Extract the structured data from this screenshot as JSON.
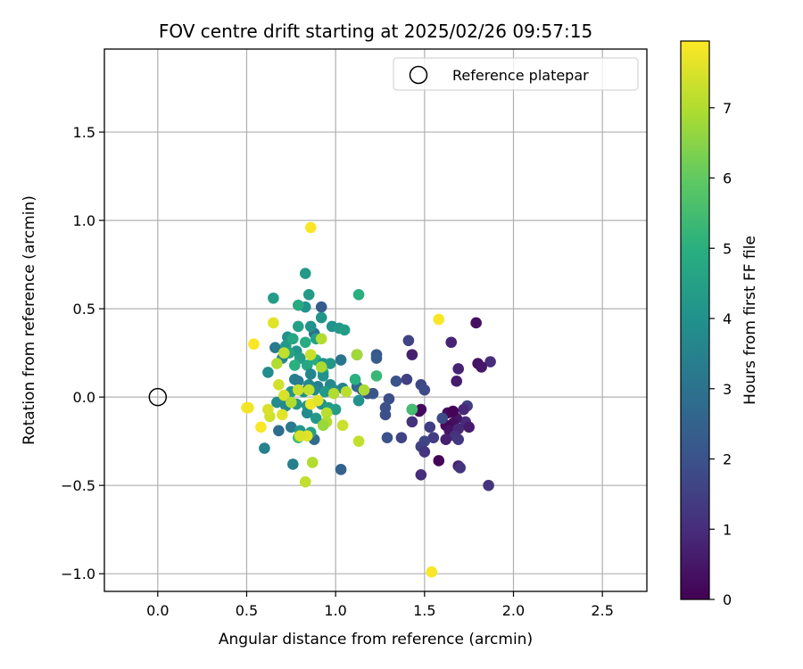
{
  "chart_data": {
    "type": "scatter",
    "title": "FOV centre drift starting at 2025/02/26 09:57:15",
    "xlabel": "Angular distance from reference (arcmin)",
    "ylabel": "Rotation from reference (arcmin)",
    "xlim": [
      -0.3,
      2.75
    ],
    "ylim": [
      -1.1,
      1.97
    ],
    "xticks": [
      0.0,
      0.5,
      1.0,
      1.5,
      2.0,
      2.5
    ],
    "xtick_labels": [
      "0.0",
      "0.5",
      "1.0",
      "1.5",
      "2.0",
      "2.5"
    ],
    "yticks": [
      -1.0,
      -0.5,
      0.0,
      0.5,
      1.0,
      1.5
    ],
    "ytick_labels": [
      "−1.0",
      "−0.5",
      "0.0",
      "0.5",
      "1.0",
      "1.5"
    ],
    "grid": true,
    "legend": {
      "placement": "top-right",
      "label": "Reference platepar"
    },
    "reference_point": {
      "x": 0.0,
      "y": 0.0
    },
    "colorbar": {
      "label": "Hours from first FF file",
      "colormap": "viridis",
      "range": [
        0,
        7.95
      ],
      "ticks": [
        0,
        1,
        2,
        3,
        4,
        5,
        6,
        7
      ],
      "tick_labels": [
        "0",
        "1",
        "2",
        "3",
        "4",
        "5",
        "6",
        "7"
      ]
    },
    "points": [
      {
        "x": 1.79,
        "y": 0.42,
        "c": 0.3
      },
      {
        "x": 1.87,
        "y": 0.2,
        "c": 1.0
      },
      {
        "x": 1.8,
        "y": 0.19,
        "c": 0.4
      },
      {
        "x": 1.82,
        "y": 0.17,
        "c": 0.5
      },
      {
        "x": 1.69,
        "y": 0.16,
        "c": 0.8
      },
      {
        "x": 1.65,
        "y": 0.31,
        "c": 0.8
      },
      {
        "x": 1.68,
        "y": 0.09,
        "c": 0.6
      },
      {
        "x": 1.86,
        "y": -0.5,
        "c": 1.2
      },
      {
        "x": 1.74,
        "y": -0.05,
        "c": 1.4
      },
      {
        "x": 1.72,
        "y": -0.07,
        "c": 0.9
      },
      {
        "x": 1.73,
        "y": -0.14,
        "c": 1.0
      },
      {
        "x": 1.75,
        "y": -0.17,
        "c": 0.6
      },
      {
        "x": 1.68,
        "y": -0.12,
        "c": 0.5
      },
      {
        "x": 1.66,
        "y": -0.15,
        "c": 0.3
      },
      {
        "x": 1.63,
        "y": -0.09,
        "c": 0.2
      },
      {
        "x": 1.66,
        "y": -0.08,
        "c": 0.1
      },
      {
        "x": 1.62,
        "y": -0.16,
        "c": 0.2
      },
      {
        "x": 1.6,
        "y": -0.12,
        "c": 1.8
      },
      {
        "x": 1.64,
        "y": -0.19,
        "c": 0.4
      },
      {
        "x": 1.69,
        "y": -0.18,
        "c": 0.9
      },
      {
        "x": 1.67,
        "y": -0.22,
        "c": 1.1
      },
      {
        "x": 1.69,
        "y": -0.24,
        "c": 1.3
      },
      {
        "x": 1.62,
        "y": -0.24,
        "c": 0.7
      },
      {
        "x": 1.55,
        "y": -0.23,
        "c": 1.4
      },
      {
        "x": 1.69,
        "y": -0.39,
        "c": 0.7
      },
      {
        "x": 1.7,
        "y": -0.4,
        "c": 1.2
      },
      {
        "x": 1.58,
        "y": -0.36,
        "c": 0.1
      },
      {
        "x": 1.53,
        "y": -0.17,
        "c": 1.4
      },
      {
        "x": 1.5,
        "y": -0.25,
        "c": 1.7
      },
      {
        "x": 1.48,
        "y": -0.28,
        "c": 1.5
      },
      {
        "x": 1.5,
        "y": -0.31,
        "c": 1.2
      },
      {
        "x": 1.48,
        "y": -0.44,
        "c": 1.0
      },
      {
        "x": 1.48,
        "y": -0.07,
        "c": 0.2
      },
      {
        "x": 1.47,
        "y": -0.08,
        "c": 0.2
      },
      {
        "x": 1.43,
        "y": -0.07,
        "c": 1.2
      },
      {
        "x": 1.43,
        "y": -0.14,
        "c": 1.1
      },
      {
        "x": 1.48,
        "y": 0.07,
        "c": 1.7
      },
      {
        "x": 1.5,
        "y": 0.04,
        "c": 1.8
      },
      {
        "x": 1.41,
        "y": 0.32,
        "c": 1.6
      },
      {
        "x": 1.43,
        "y": 0.24,
        "c": 0.7
      },
      {
        "x": 1.34,
        "y": 0.09,
        "c": 2.0
      },
      {
        "x": 1.4,
        "y": 0.1,
        "c": 1.5
      },
      {
        "x": 1.3,
        "y": -0.01,
        "c": 1.9
      },
      {
        "x": 1.28,
        "y": -0.06,
        "c": 2.0
      },
      {
        "x": 1.28,
        "y": -0.1,
        "c": 1.9
      },
      {
        "x": 1.29,
        "y": -0.23,
        "c": 2.0
      },
      {
        "x": 1.37,
        "y": -0.23,
        "c": 1.6
      },
      {
        "x": 1.23,
        "y": 0.24,
        "c": 2.1
      },
      {
        "x": 1.23,
        "y": 0.22,
        "c": 2.3
      },
      {
        "x": 1.21,
        "y": 0.02,
        "c": 2.1
      },
      {
        "x": 1.18,
        "y": 0.02,
        "c": 2.0
      },
      {
        "x": 1.15,
        "y": 0.04,
        "c": 2.4
      },
      {
        "x": 1.12,
        "y": 0.24,
        "c": 2.5
      },
      {
        "x": 1.12,
        "y": 0.06,
        "c": 2.7
      },
      {
        "x": 1.03,
        "y": -0.41,
        "c": 2.5
      },
      {
        "x": 0.88,
        "y": -0.24,
        "c": 2.8
      },
      {
        "x": 0.76,
        "y": -0.38,
        "c": 3.4
      },
      {
        "x": 0.6,
        "y": -0.29,
        "c": 3.5
      },
      {
        "x": 0.68,
        "y": -0.19,
        "c": 2.8
      },
      {
        "x": 0.75,
        "y": -0.17,
        "c": 3.2
      },
      {
        "x": 1.03,
        "y": 0.21,
        "c": 3.1
      },
      {
        "x": 0.92,
        "y": 0.51,
        "c": 2.3
      },
      {
        "x": 0.88,
        "y": 0.36,
        "c": 3.0
      },
      {
        "x": 0.98,
        "y": 0.4,
        "c": 4.0
      },
      {
        "x": 1.02,
        "y": 0.39,
        "c": 4.2
      },
      {
        "x": 1.05,
        "y": 0.38,
        "c": 4.4
      },
      {
        "x": 0.92,
        "y": 0.45,
        "c": 4.1
      },
      {
        "x": 0.86,
        "y": 0.4,
        "c": 4.0
      },
      {
        "x": 0.83,
        "y": 0.7,
        "c": 4.3
      },
      {
        "x": 0.85,
        "y": 0.58,
        "c": 4.3
      },
      {
        "x": 0.83,
        "y": 0.51,
        "c": 4.0
      },
      {
        "x": 0.79,
        "y": 0.52,
        "c": 4.8
      },
      {
        "x": 0.65,
        "y": 0.56,
        "c": 4.4
      },
      {
        "x": 0.79,
        "y": 0.4,
        "c": 4.5
      },
      {
        "x": 0.73,
        "y": 0.34,
        "c": 4.0
      },
      {
        "x": 0.66,
        "y": 0.28,
        "c": 3.2
      },
      {
        "x": 0.72,
        "y": 0.29,
        "c": 4.3
      },
      {
        "x": 0.76,
        "y": 0.33,
        "c": 4.7
      },
      {
        "x": 0.83,
        "y": 0.31,
        "c": 4.9
      },
      {
        "x": 0.89,
        "y": 0.33,
        "c": 4.5
      },
      {
        "x": 0.78,
        "y": 0.26,
        "c": 4.1
      },
      {
        "x": 0.74,
        "y": 0.25,
        "c": 4.6
      },
      {
        "x": 0.7,
        "y": 0.22,
        "c": 3.6
      },
      {
        "x": 0.8,
        "y": 0.22,
        "c": 4.4
      },
      {
        "x": 0.89,
        "y": 0.21,
        "c": 4.9
      },
      {
        "x": 0.93,
        "y": 0.19,
        "c": 4.0
      },
      {
        "x": 0.97,
        "y": 0.19,
        "c": 4.2
      },
      {
        "x": 0.62,
        "y": 0.14,
        "c": 3.8
      },
      {
        "x": 0.67,
        "y": 0.19,
        "c": 7.0
      },
      {
        "x": 0.77,
        "y": 0.18,
        "c": 5.0
      },
      {
        "x": 0.84,
        "y": 0.18,
        "c": 4.7
      },
      {
        "x": 0.86,
        "y": 0.13,
        "c": 3.6
      },
      {
        "x": 0.93,
        "y": 0.14,
        "c": 5.0
      },
      {
        "x": 0.93,
        "y": 0.12,
        "c": 4.0
      },
      {
        "x": 0.77,
        "y": 0.1,
        "c": 3.5
      },
      {
        "x": 0.79,
        "y": 0.09,
        "c": 3.3
      },
      {
        "x": 0.85,
        "y": 0.07,
        "c": 3.7
      },
      {
        "x": 0.9,
        "y": 0.06,
        "c": 3.4
      },
      {
        "x": 0.97,
        "y": 0.07,
        "c": 3.7
      },
      {
        "x": 1.04,
        "y": 0.05,
        "c": 3.5
      },
      {
        "x": 0.99,
        "y": 0.04,
        "c": 3.8
      },
      {
        "x": 0.94,
        "y": 0.03,
        "c": 4.3
      },
      {
        "x": 0.88,
        "y": 0.04,
        "c": 3.7
      },
      {
        "x": 0.82,
        "y": 0.03,
        "c": 3.9
      },
      {
        "x": 0.75,
        "y": 0.03,
        "c": 4.1
      },
      {
        "x": 0.71,
        "y": 0.0,
        "c": 3.9
      },
      {
        "x": 0.67,
        "y": -0.03,
        "c": 3.8
      },
      {
        "x": 0.72,
        "y": -0.05,
        "c": 3.7
      },
      {
        "x": 0.78,
        "y": -0.04,
        "c": 4.1
      },
      {
        "x": 0.84,
        "y": -0.05,
        "c": 4.2
      },
      {
        "x": 0.92,
        "y": -0.04,
        "c": 3.9
      },
      {
        "x": 0.96,
        "y": -0.06,
        "c": 4.3
      },
      {
        "x": 1.0,
        "y": -0.07,
        "c": 4.4
      },
      {
        "x": 0.84,
        "y": -0.09,
        "c": 3.8
      },
      {
        "x": 0.89,
        "y": -0.12,
        "c": 4.2
      },
      {
        "x": 0.8,
        "y": -0.19,
        "c": 4.2
      },
      {
        "x": 0.86,
        "y": -0.2,
        "c": 4.5
      },
      {
        "x": 0.79,
        "y": -0.23,
        "c": 5.5
      },
      {
        "x": 1.13,
        "y": -0.02,
        "c": 4.0
      },
      {
        "x": 1.11,
        "y": 0.1,
        "c": 5.0
      },
      {
        "x": 1.13,
        "y": 0.58,
        "c": 5.0
      },
      {
        "x": 1.23,
        "y": 0.12,
        "c": 5.3
      },
      {
        "x": 1.43,
        "y": -0.07,
        "c": 5.5
      },
      {
        "x": 1.12,
        "y": 0.24,
        "c": 6.8
      },
      {
        "x": 1.16,
        "y": 0.04,
        "c": 6.9
      },
      {
        "x": 1.06,
        "y": 0.03,
        "c": 7.1
      },
      {
        "x": 0.99,
        "y": 0.02,
        "c": 7.0
      },
      {
        "x": 1.04,
        "y": -0.16,
        "c": 7.3
      },
      {
        "x": 1.13,
        "y": -0.25,
        "c": 7.2
      },
      {
        "x": 0.95,
        "y": -0.09,
        "c": 7.1
      },
      {
        "x": 0.95,
        "y": -0.14,
        "c": 7.0
      },
      {
        "x": 0.93,
        "y": -0.16,
        "c": 6.7
      },
      {
        "x": 0.87,
        "y": -0.37,
        "c": 7.0
      },
      {
        "x": 0.83,
        "y": -0.48,
        "c": 7.2
      },
      {
        "x": 0.84,
        "y": -0.22,
        "c": 7.6
      },
      {
        "x": 0.8,
        "y": -0.22,
        "c": 7.5
      },
      {
        "x": 0.7,
        "y": -0.1,
        "c": 7.6
      },
      {
        "x": 0.63,
        "y": -0.11,
        "c": 7.4
      },
      {
        "x": 0.62,
        "y": -0.07,
        "c": 7.5
      },
      {
        "x": 0.58,
        "y": -0.17,
        "c": 7.9
      },
      {
        "x": 0.5,
        "y": -0.06,
        "c": 7.9
      },
      {
        "x": 0.51,
        "y": -0.06,
        "c": 7.8
      },
      {
        "x": 0.54,
        "y": 0.3,
        "c": 7.9
      },
      {
        "x": 0.65,
        "y": 0.42,
        "c": 7.6
      },
      {
        "x": 0.68,
        "y": 0.07,
        "c": 7.4
      },
      {
        "x": 0.71,
        "y": 0.01,
        "c": 7.5
      },
      {
        "x": 0.71,
        "y": 0.25,
        "c": 7.2
      },
      {
        "x": 0.75,
        "y": -0.03,
        "c": 7.0
      },
      {
        "x": 0.79,
        "y": 0.04,
        "c": 7.3
      },
      {
        "x": 0.85,
        "y": 0.04,
        "c": 7.2
      },
      {
        "x": 0.86,
        "y": -0.04,
        "c": 7.8
      },
      {
        "x": 0.9,
        "y": -0.02,
        "c": 7.6
      },
      {
        "x": 0.86,
        "y": 0.24,
        "c": 7.3
      },
      {
        "x": 0.92,
        "y": 0.33,
        "c": 7.0
      },
      {
        "x": 0.92,
        "y": 0.17,
        "c": 6.9
      },
      {
        "x": 0.86,
        "y": 0.96,
        "c": 7.9
      },
      {
        "x": 1.58,
        "y": 0.44,
        "c": 7.9
      },
      {
        "x": 1.54,
        "y": -0.99,
        "c": 7.9
      }
    ]
  }
}
